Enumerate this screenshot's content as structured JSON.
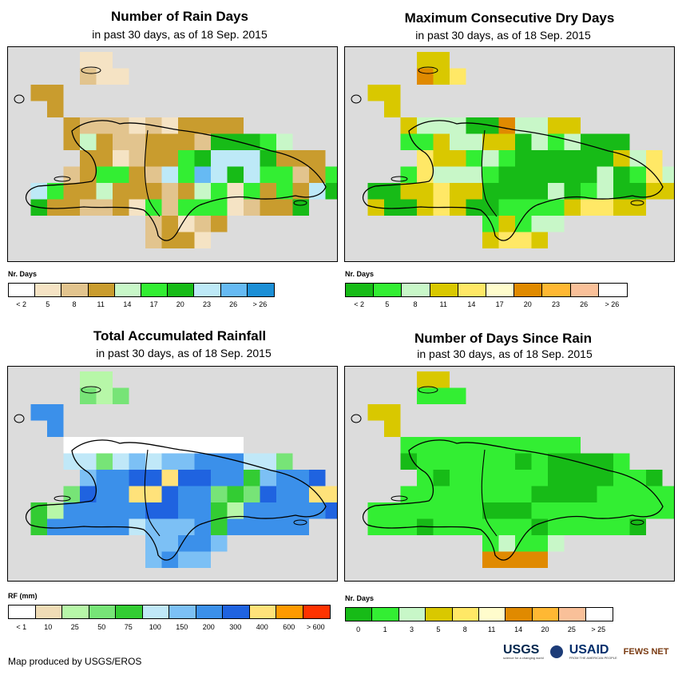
{
  "panels": [
    {
      "id": "rain-days",
      "title": "Number of Rain Days",
      "subtitle": "in past 30 days, as of 18 Sep. 2015",
      "legend_title": "Nr. Days",
      "legend_colors": [
        "#ffffff",
        "#f5e3c4",
        "#e2c48e",
        "#c99c2e",
        "#c8f7c8",
        "#33ee33",
        "#17bb17",
        "#bde9f7",
        "#66baf3",
        "#1c8fd6"
      ],
      "legend_ticks": [
        "< 2",
        "5",
        "8",
        "11",
        "14",
        "17",
        "20",
        "23",
        "26",
        "> 26"
      ],
      "palette": [
        "#ffffff",
        "#f5e3c4",
        "#e2c48e",
        "#c99c2e",
        "#c8f7c8",
        "#33ee33",
        "#17bb17",
        "#bde9f7",
        "#66baf3",
        "#1c8fd6"
      ]
    },
    {
      "id": "dry-days",
      "title": "Maximum Consecutive Dry Days",
      "subtitle": "in past 30 days, as of 18 Sep. 2015",
      "legend_title": "Nr. Days",
      "legend_colors": [
        "#17bb17",
        "#33ee33",
        "#c8f7c8",
        "#d9c800",
        "#ffe866",
        "#fffccc",
        "#e08a00",
        "#ffb833",
        "#f9c099",
        "#ffffff"
      ],
      "legend_ticks": [
        "< 2",
        "5",
        "8",
        "11",
        "14",
        "17",
        "20",
        "23",
        "26",
        "> 26"
      ],
      "palette": [
        "#17bb17",
        "#33ee33",
        "#c8f7c8",
        "#d9c800",
        "#ffe866",
        "#fffccc",
        "#e08a00",
        "#ffb833",
        "#f9c099",
        "#ffffff"
      ]
    },
    {
      "id": "rainfall",
      "title": "Total Accumulated Rainfall",
      "subtitle": "in past 30 days, as of 18 Sep. 2015",
      "legend_title": "RF (mm)",
      "legend_colors": [
        "#ffffff",
        "#f0dcb6",
        "#b7f7a8",
        "#77e477",
        "#33cc33",
        "#c0e8f8",
        "#7cc0f5",
        "#3b90ea",
        "#1f63e0",
        "#ffe27a",
        "#ff9a00",
        "#ff3300"
      ],
      "legend_ticks": [
        "< 1",
        "10",
        "25",
        "50",
        "75",
        "100",
        "150",
        "200",
        "300",
        "400",
        "600",
        "> 600"
      ],
      "palette": [
        "#ffffff",
        "#f0dcb6",
        "#b7f7a8",
        "#77e477",
        "#33cc33",
        "#c0e8f8",
        "#7cc0f5",
        "#3b90ea",
        "#1f63e0",
        "#ffe27a",
        "#ff9a00",
        "#ff3300"
      ]
    },
    {
      "id": "since-rain",
      "title": "Number of Days Since Rain",
      "subtitle": "in past 30 days, as of 18 Sep. 2015",
      "legend_title": "Nr. Days",
      "legend_colors": [
        "#17bb17",
        "#33ee33",
        "#c8f7c8",
        "#d9c800",
        "#ffe866",
        "#fffccc",
        "#e08a00",
        "#ffb833",
        "#f9c099",
        "#ffffff"
      ],
      "legend_ticks": [
        "0",
        "1",
        "3",
        "5",
        "8",
        "11",
        "14",
        "20",
        "25",
        "> 25"
      ],
      "palette": [
        "#17bb17",
        "#33ee33",
        "#c8f7c8",
        "#d9c800",
        "#ffe866",
        "#fffccc",
        "#e08a00",
        "#ffb833",
        "#f9c099",
        "#ffffff"
      ]
    }
  ],
  "footer": {
    "credit": "Map produced by USGS/EROS"
  },
  "logos": {
    "usgs": "USGS",
    "usgs_tag": "science for a changing world",
    "usaid": "USAID",
    "usaid_tag": "FROM THE AMERICAN PEOPLE",
    "fews": "FEWS NET"
  }
}
